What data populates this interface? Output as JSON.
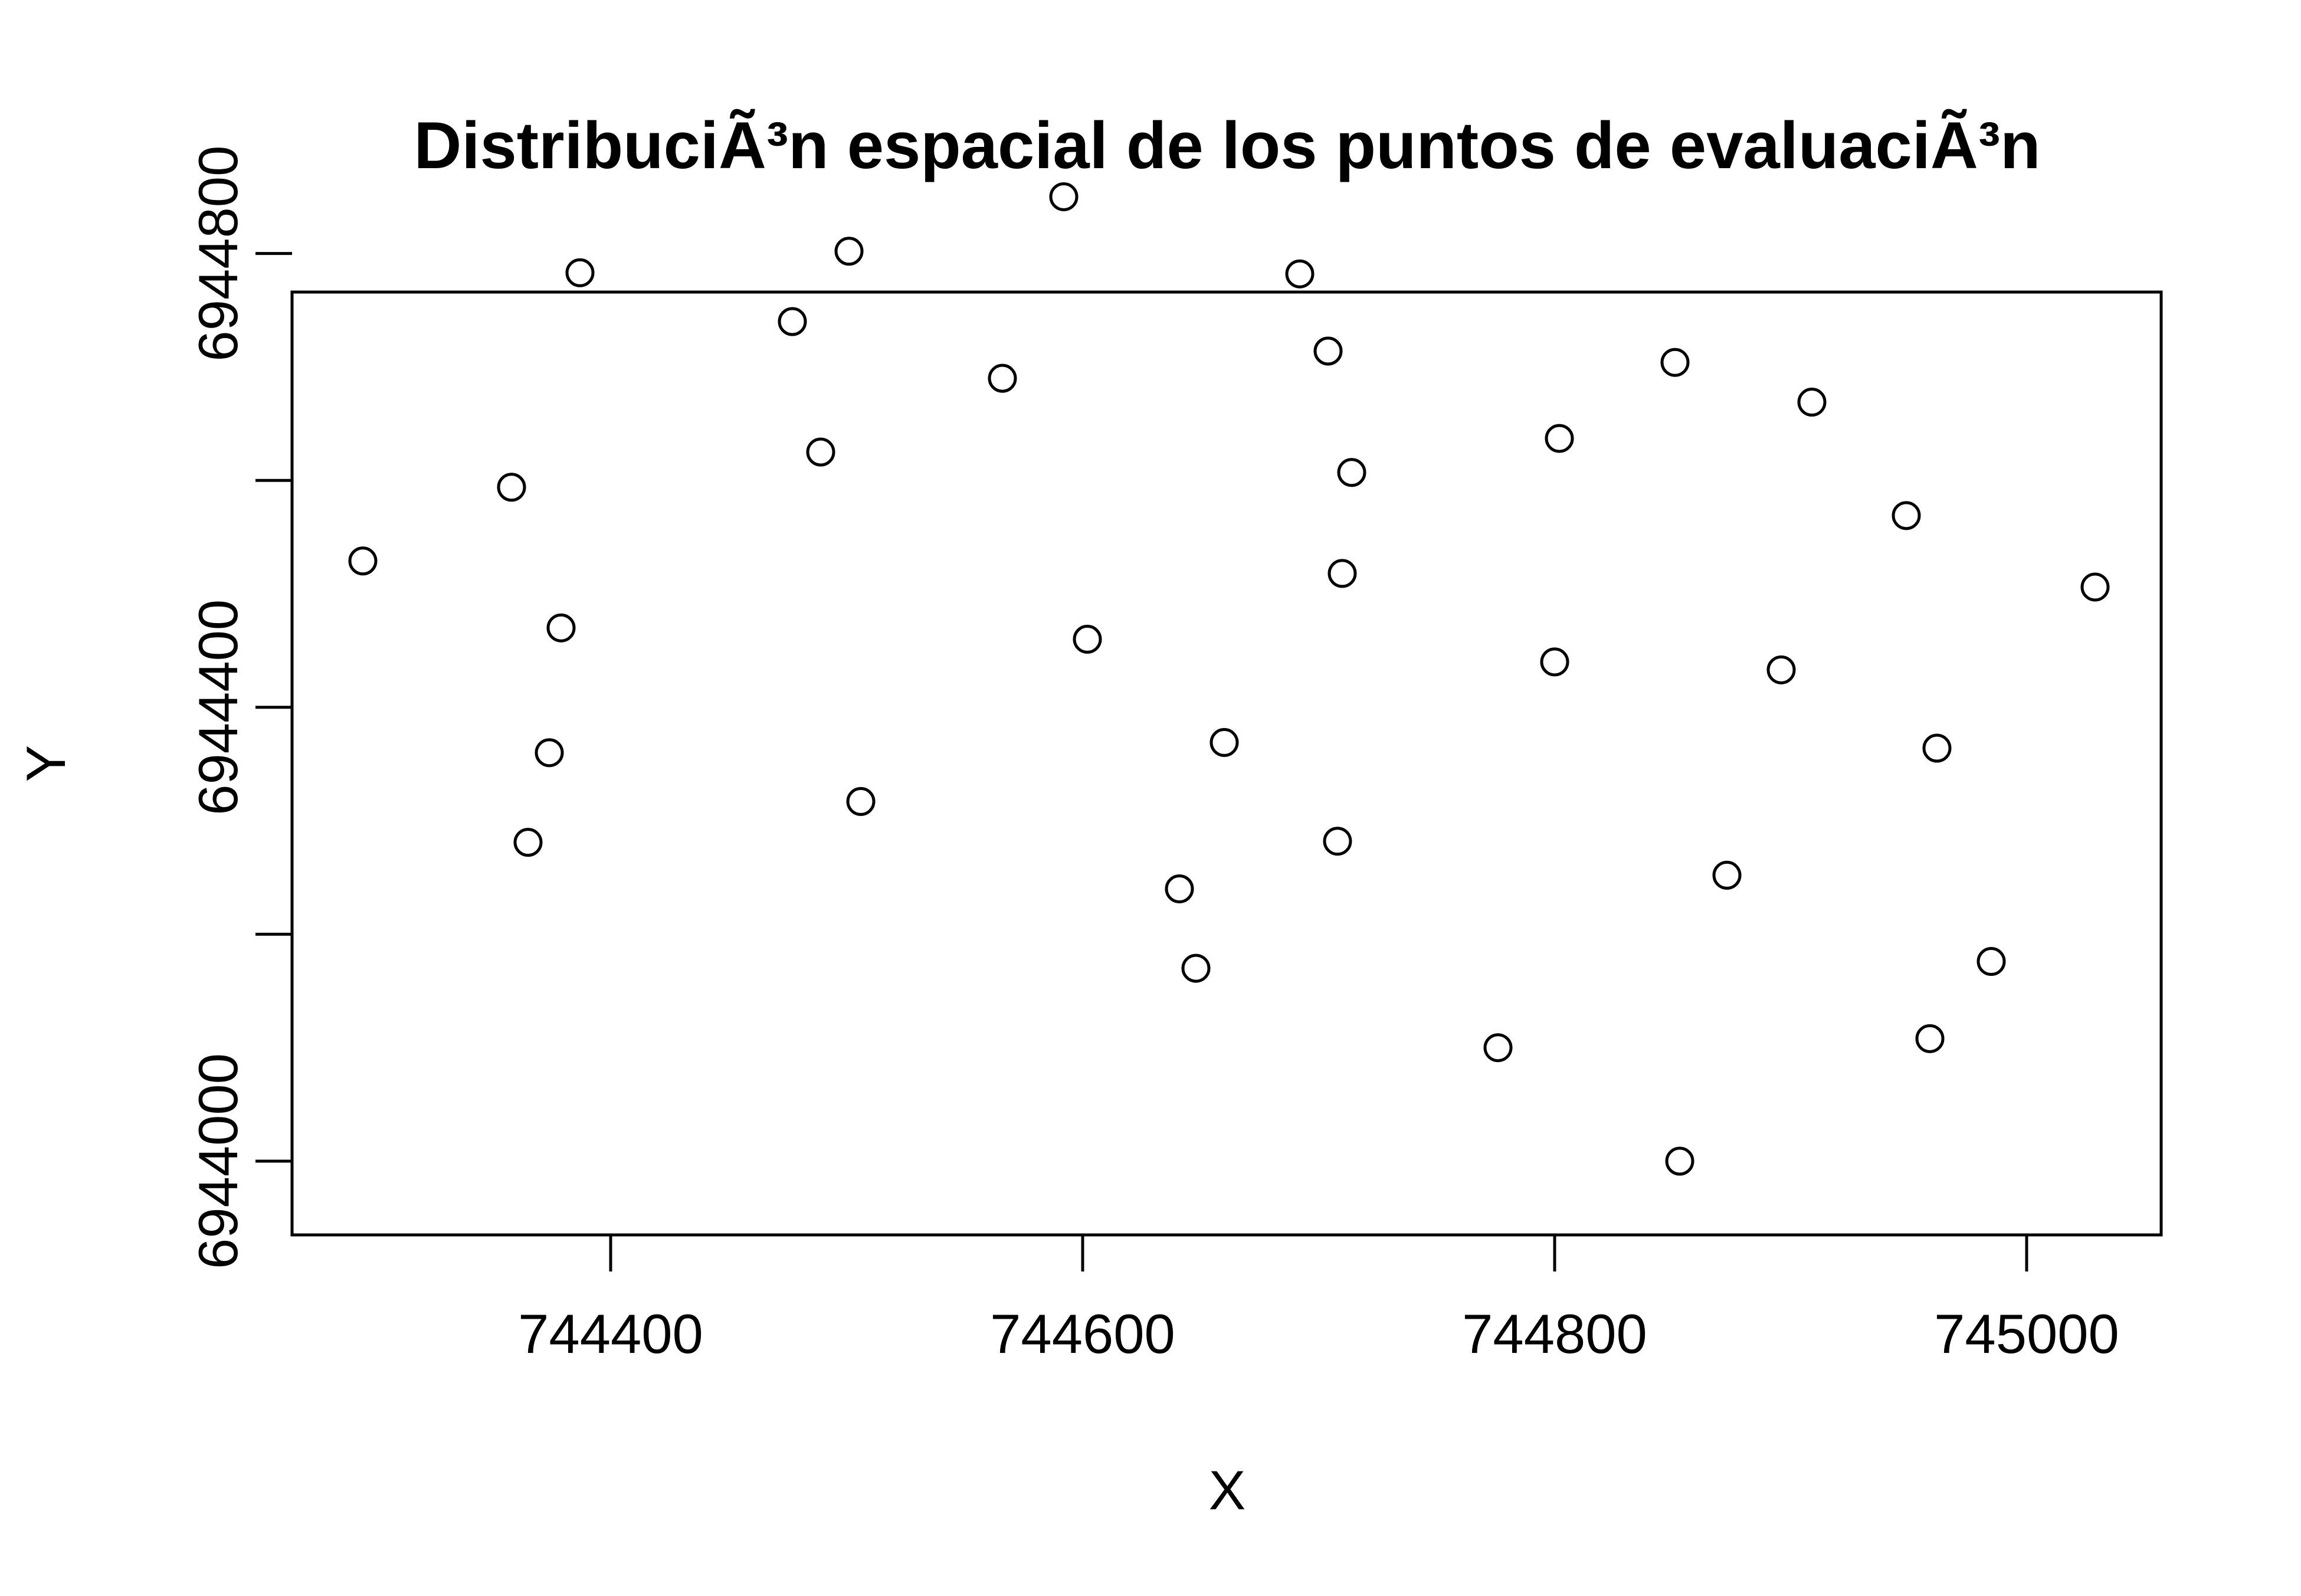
{
  "chart_data": {
    "type": "scatter",
    "title": "DistribuciÃ³n  espacial de los puntos de evaluaciÃ³n",
    "xlabel": "X",
    "ylabel": "Y",
    "xlim": [
      744265,
      745057
    ],
    "ylim": [
      6943935,
      6944766
    ],
    "xticks": [
      744400,
      744600,
      744800,
      745000
    ],
    "yticks": [
      6944000,
      6944200,
      6944400,
      6944600,
      6944800
    ],
    "xtick_labels": [
      "744400",
      "744600",
      "744800",
      "745000"
    ],
    "ytick_labels": [
      "6944000",
      "",
      "6944400",
      "",
      "6944800"
    ],
    "grid": false,
    "marker": "open-circle",
    "x": [
      744295,
      744358,
      744365,
      744374,
      744379,
      744387,
      744477,
      744489,
      744501,
      744506,
      744566,
      744592,
      744602,
      744641,
      744648,
      744660,
      744692,
      744704,
      744708,
      744710,
      744714,
      744776,
      744800,
      744802,
      744851,
      744853,
      744873,
      744896,
      744909,
      744949,
      744959,
      744962,
      744985,
      745029
    ],
    "y": [
      6944529,
      6944594,
      6944281,
      6944360,
      6944470,
      6944783,
      6944740,
      6944625,
      6944802,
      6944317,
      6944690,
      6944850,
      6944460,
      6944240,
      6944170,
      6944369,
      6944782,
      6944714,
      6944282,
      6944518,
      6944607,
      6944100,
      6944440,
      6944637,
      6944704,
      6944000,
      6944252,
      6944433,
      6944669,
      6944569,
      6944108,
      6944364,
      6944176,
      6944506
    ]
  }
}
